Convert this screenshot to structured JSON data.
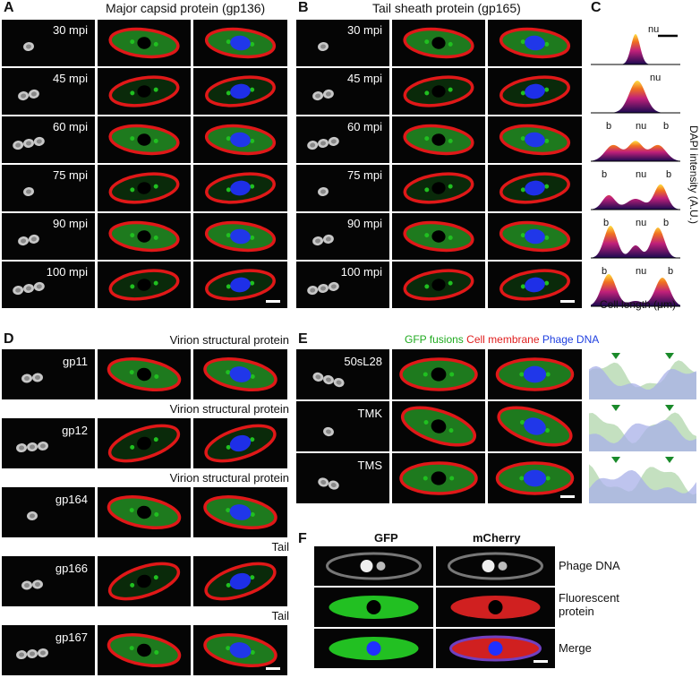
{
  "panels": {
    "A": {
      "letter": "A",
      "title": "Major capsid protein (gp136)",
      "rows": [
        "30 mpi",
        "45 mpi",
        "60 mpi",
        "75 mpi",
        "90 mpi",
        "100 mpi"
      ]
    },
    "B": {
      "letter": "B",
      "title": "Tail sheath protein (gp165)",
      "rows": [
        "30 mpi",
        "45 mpi",
        "60 mpi",
        "75 mpi",
        "90 mpi",
        "100 mpi"
      ]
    },
    "C": {
      "letter": "C",
      "peak_labels": [
        [
          "nu"
        ],
        [
          "nu"
        ],
        [
          "b",
          "nu",
          "b"
        ],
        [
          "b",
          "nu",
          "b"
        ],
        [
          "b",
          "nu",
          "b"
        ],
        [
          "b",
          "nu",
          "b"
        ]
      ],
      "xlabel": "Cell length (μm)",
      "ylabel": "DAPI intensity (A.U.)"
    },
    "D": {
      "letter": "D",
      "rows": [
        {
          "name": "gp11",
          "category": "Virion structural protein"
        },
        {
          "name": "gp12",
          "category": "Virion structural protein"
        },
        {
          "name": "gp164",
          "category": "Virion structural protein"
        },
        {
          "name": "gp166",
          "category": "Tail"
        },
        {
          "name": "gp167",
          "category": "Tail"
        }
      ]
    },
    "E": {
      "letter": "E",
      "legend": [
        {
          "text": "GFP fusions",
          "color": "#1faa1f"
        },
        {
          "text": "Cell membrane",
          "color": "#e02020"
        },
        {
          "text": "Phage DNA",
          "color": "#2040e0"
        }
      ],
      "rows": [
        "50sL28",
        "TMK",
        "TMS"
      ]
    },
    "F": {
      "letter": "F",
      "cols": [
        "GFP",
        "mCherry"
      ],
      "rows": [
        "Phage DNA",
        "Fluorescent\nprotein",
        "Merge"
      ]
    }
  },
  "colors": {
    "membrane": "#e01818",
    "gfp": "#20c020",
    "dna": "#2030ff",
    "tile_bg": "#050505"
  }
}
